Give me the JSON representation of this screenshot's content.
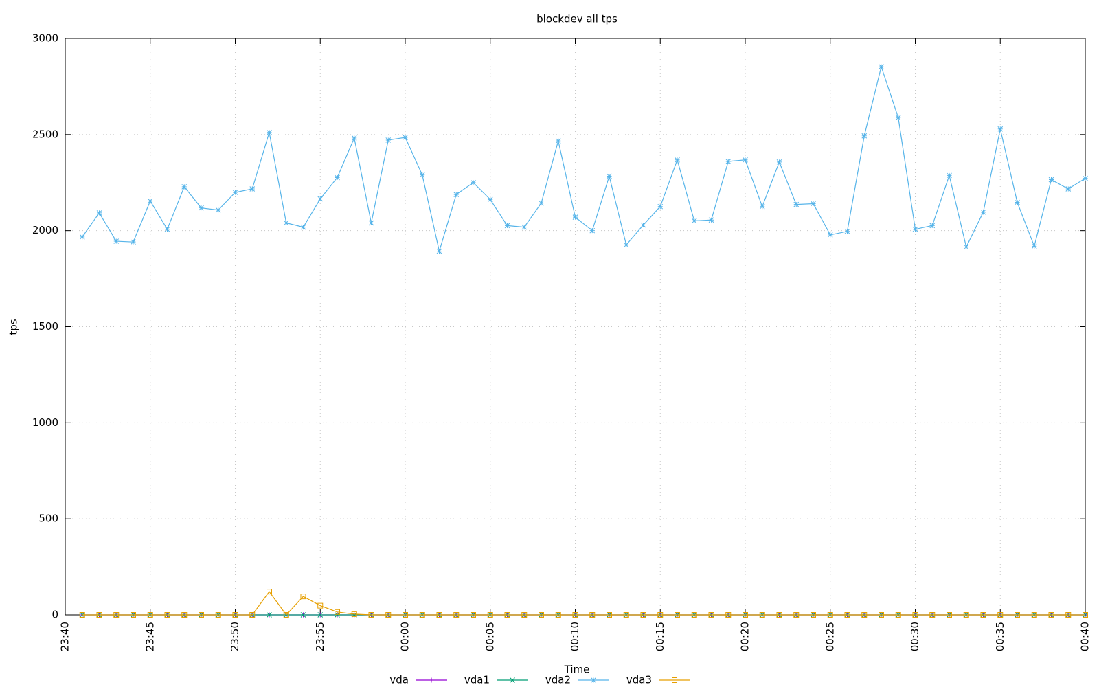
{
  "chart_data": {
    "type": "line",
    "title": "blockdev all tps",
    "x_label": "Time",
    "y_label": "tps",
    "x": [
      "23:41",
      "23:42",
      "23:43",
      "23:44",
      "23:45",
      "23:46",
      "23:47",
      "23:48",
      "23:49",
      "23:50",
      "23:51",
      "23:52",
      "23:53",
      "23:54",
      "23:55",
      "23:56",
      "23:57",
      "23:58",
      "23:59",
      "00:00",
      "00:01",
      "00:02",
      "00:03",
      "00:04",
      "00:05",
      "00:06",
      "00:07",
      "00:08",
      "00:09",
      "00:10",
      "00:11",
      "00:12",
      "00:13",
      "00:14",
      "00:15",
      "00:16",
      "00:17",
      "00:18",
      "00:19",
      "00:20",
      "00:21",
      "00:22",
      "00:23",
      "00:24",
      "00:25",
      "00:26",
      "00:27",
      "00:28",
      "00:29",
      "00:30",
      "00:31",
      "00:32",
      "00:33",
      "00:34",
      "00:35",
      "00:36",
      "00:37",
      "00:38",
      "00:39",
      "00:40"
    ],
    "xlim": [
      "23:40",
      "00:40"
    ],
    "xticks": [
      "23:40",
      "23:45",
      "23:50",
      "23:55",
      "00:00",
      "00:05",
      "00:10",
      "00:15",
      "00:20",
      "00:25",
      "00:30",
      "00:35",
      "00:40"
    ],
    "ylim": [
      0,
      3000
    ],
    "yticks": [
      0,
      500,
      1000,
      1500,
      2000,
      2500,
      3000
    ],
    "grid": true,
    "legend": "bottom",
    "series": [
      {
        "name": "vda",
        "color": "#9400d3",
        "marker": "plus",
        "values": [
          0,
          0,
          0,
          0,
          0,
          0,
          0,
          0,
          0,
          0,
          0,
          0,
          0,
          0,
          0,
          0,
          0,
          0,
          0,
          0,
          0,
          0,
          0,
          0,
          0,
          0,
          0,
          0,
          0,
          0,
          0,
          0,
          0,
          0,
          0,
          0,
          0,
          0,
          0,
          0,
          0,
          0,
          0,
          0,
          0,
          0,
          0,
          0,
          0,
          0,
          0,
          0,
          0,
          0,
          0,
          0,
          0,
          0,
          0,
          0
        ]
      },
      {
        "name": "vda1",
        "color": "#009e73",
        "marker": "cross",
        "values": [
          0,
          0,
          0,
          0,
          0,
          0,
          0,
          0,
          0,
          0,
          0,
          0,
          0,
          0,
          0,
          0,
          0,
          0,
          0,
          0,
          0,
          0,
          0,
          0,
          0,
          0,
          0,
          0,
          0,
          0,
          0,
          0,
          0,
          0,
          0,
          0,
          0,
          0,
          0,
          0,
          0,
          0,
          0,
          0,
          0,
          0,
          0,
          0,
          0,
          0,
          0,
          0,
          0,
          0,
          0,
          0,
          0,
          0,
          0,
          0
        ]
      },
      {
        "name": "vda2",
        "color": "#56b4e9",
        "marker": "star",
        "values": [
          1967,
          2092,
          1945,
          1941,
          2154,
          2007,
          2228,
          2118,
          2107,
          2199,
          2217,
          2511,
          2040,
          2018,
          2165,
          2276,
          2482,
          2040,
          2471,
          2485,
          2290,
          1893,
          2188,
          2250,
          2162,
          2026,
          2018,
          2143,
          2467,
          2070,
          2000,
          2283,
          1926,
          2029,
          2125,
          2368,
          2051,
          2055,
          2360,
          2368,
          2125,
          2357,
          2136,
          2140,
          1978,
          1996,
          2493,
          2853,
          2588,
          2007,
          2026,
          2287,
          1915,
          2096,
          2529,
          2147,
          1919,
          2265,
          2217,
          2272
        ]
      },
      {
        "name": "vda3",
        "color": "#e69f00",
        "marker": "square",
        "values": [
          0,
          0,
          0,
          0,
          0,
          0,
          0,
          0,
          0,
          0,
          0,
          121,
          0,
          96,
          48,
          15,
          4,
          0,
          0,
          0,
          0,
          0,
          0,
          0,
          0,
          0,
          0,
          0,
          0,
          0,
          0,
          0,
          0,
          0,
          0,
          0,
          0,
          0,
          0,
          0,
          0,
          0,
          0,
          0,
          0,
          0,
          0,
          0,
          0,
          0,
          0,
          0,
          0,
          0,
          0,
          0,
          0,
          0,
          0,
          0
        ]
      }
    ]
  }
}
